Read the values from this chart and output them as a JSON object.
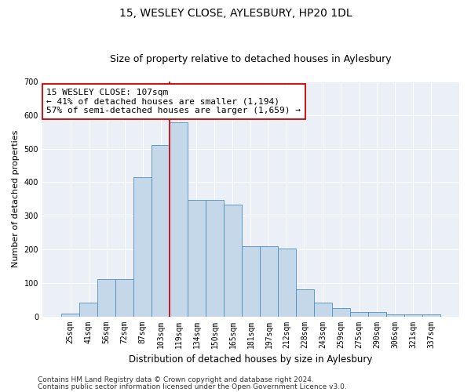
{
  "title": "15, WESLEY CLOSE, AYLESBURY, HP20 1DL",
  "subtitle": "Size of property relative to detached houses in Aylesbury",
  "xlabel": "Distribution of detached houses by size in Aylesbury",
  "ylabel": "Number of detached properties",
  "categories": [
    "25sqm",
    "41sqm",
    "56sqm",
    "72sqm",
    "87sqm",
    "103sqm",
    "119sqm",
    "134sqm",
    "150sqm",
    "165sqm",
    "181sqm",
    "197sqm",
    "212sqm",
    "228sqm",
    "243sqm",
    "259sqm",
    "275sqm",
    "290sqm",
    "306sqm",
    "321sqm",
    "337sqm"
  ],
  "bar_heights": [
    8,
    40,
    112,
    112,
    415,
    510,
    578,
    348,
    346,
    333,
    210,
    210,
    202,
    80,
    40,
    25,
    12,
    12,
    5,
    5,
    5
  ],
  "bar_color": "#c5d8ea",
  "bar_edge_color": "#4f90c0",
  "vline_color": "#cc0000",
  "vline_x": 5.5,
  "annotation_text": "15 WESLEY CLOSE: 107sqm\n← 41% of detached houses are smaller (1,194)\n57% of semi-detached houses are larger (1,659) →",
  "annotation_box_color": "white",
  "annotation_border_color": "#cc0000",
  "ylim": [
    0,
    700
  ],
  "yticks": [
    0,
    100,
    200,
    300,
    400,
    500,
    600,
    700
  ],
  "bg_color": "#eaf0f6",
  "footer_line1": "Contains HM Land Registry data © Crown copyright and database right 2024.",
  "footer_line2": "Contains public sector information licensed under the Open Government Licence v3.0.",
  "title_fontsize": 10,
  "subtitle_fontsize": 9,
  "xlabel_fontsize": 8.5,
  "ylabel_fontsize": 8,
  "tick_fontsize": 7,
  "annotation_fontsize": 8,
  "footer_fontsize": 6.5
}
